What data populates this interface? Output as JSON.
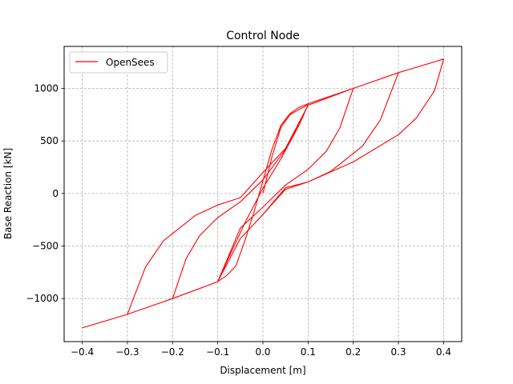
{
  "chart_data": {
    "type": "line",
    "title": "Control Node",
    "xlabel": "Displacement [m]",
    "ylabel": "Base Reaction [kN]",
    "xlim": [
      -0.44,
      0.44
    ],
    "ylim": [
      -1410,
      1400
    ],
    "xticks": [
      -0.4,
      -0.3,
      -0.2,
      -0.1,
      0.0,
      0.1,
      0.2,
      0.3,
      0.4
    ],
    "xtick_labels": [
      "−0.4",
      "−0.3",
      "−0.2",
      "−0.1",
      "0.0",
      "0.1",
      "0.2",
      "0.3",
      "0.4"
    ],
    "yticks": [
      -1000,
      -500,
      0,
      500,
      1000
    ],
    "ytick_labels": [
      "−1000",
      "−500",
      "0",
      "500",
      "1000"
    ],
    "grid": true,
    "legend_position": "top-left",
    "series": [
      {
        "name": "OpenSees",
        "color": "#ff0000",
        "x": [
          0.0,
          0.02,
          0.04,
          0.06,
          0.08,
          0.1,
          0.08,
          0.04,
          0.0,
          -0.04,
          -0.08,
          -0.1,
          -0.08,
          -0.06,
          -0.04,
          -0.02,
          0.0,
          0.02,
          0.04,
          0.06,
          0.08,
          0.1,
          0.2,
          0.17,
          0.14,
          0.1,
          0.05,
          0.0,
          -0.05,
          -0.1,
          -0.2,
          -0.17,
          -0.14,
          -0.1,
          -0.05,
          0.0,
          0.05,
          0.1,
          0.2,
          0.3,
          0.26,
          0.22,
          0.15,
          0.1,
          0.05,
          0.0,
          -0.05,
          -0.1,
          -0.15,
          -0.2,
          -0.3,
          -0.26,
          -0.22,
          -0.15,
          -0.1,
          -0.05,
          0.0,
          0.05,
          0.1,
          0.2,
          0.3,
          0.4,
          0.38,
          0.34,
          0.3,
          0.2,
          0.1,
          0.05,
          0.0,
          -0.05,
          -0.1,
          -0.2,
          -0.3,
          -0.4
        ],
        "y": [
          0,
          350,
          630,
          750,
          800,
          845,
          650,
          330,
          50,
          -280,
          -650,
          -840,
          -780,
          -690,
          -450,
          -180,
          120,
          420,
          650,
          760,
          820,
          855,
          1000,
          620,
          400,
          230,
          80,
          -130,
          -330,
          -840,
          -1000,
          -620,
          -400,
          -230,
          -80,
          130,
          420,
          840,
          1000,
          1150,
          700,
          450,
          210,
          110,
          40,
          -200,
          -430,
          -840,
          -920,
          -1000,
          -1150,
          -700,
          -450,
          -210,
          -110,
          -40,
          200,
          430,
          840,
          1000,
          1150,
          1280,
          980,
          720,
          560,
          300,
          110,
          55,
          -200,
          -430,
          -840,
          -1000,
          -1150,
          -1280
        ]
      }
    ]
  }
}
